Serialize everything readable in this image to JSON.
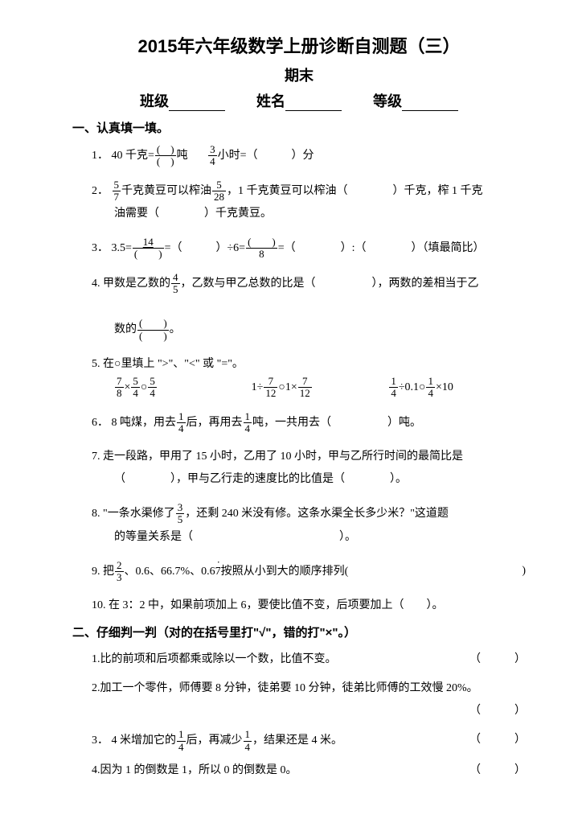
{
  "title": "2015年六年级数学上册诊断自测题（三）",
  "subtitle": "期末",
  "info": {
    "class_label": "班级",
    "name_label": "姓名",
    "grade_label": "等级"
  },
  "section1": {
    "head": "一、认真填一填。",
    "q1": {
      "n": "1．",
      "a": "40 千克=",
      "b": "吨",
      "c": "小时=（　　　）分"
    },
    "q2": {
      "n": "2．",
      "a": "千克黄豆可以榨油",
      "b": "，1 千克黄豆可以榨油（　　　　）千克，榨 1 千克",
      "c": "油需要（　　　　）千克黄豆。"
    },
    "q3": {
      "n": "3．",
      "a": "3.5=",
      "b": "=（　　　）÷6=",
      "c": "=（　　　　）:（　　　　）（填最简比）"
    },
    "q4": {
      "n": "4.",
      "a": "甲数是乙数的",
      "b": "，乙数与甲乙总数的比是（　　　　　），两数的差相当于乙",
      "c": "数的",
      "d": "。"
    },
    "q5": {
      "n": "5.",
      "a": "在○里填上 \">\"、\"<\" 或 \"=\"。",
      "c1a": "×",
      "c1b": "○",
      "c2a": "1÷",
      "c2b": "○1×",
      "c3a": "÷0.1○",
      "c3b": "×10"
    },
    "q6": {
      "n": "6．",
      "a": "8 吨煤，用去",
      "b": "后，再用去",
      "c": "吨，一共用去（　　　　　）吨。"
    },
    "q7": {
      "n": "7.",
      "a": "走一段路，甲用了 15 小时，乙用了 10 小时，甲与乙所行时间的最简比是",
      "b": "（　　　　），甲与乙行走的速度比的比值是（　　　　）。"
    },
    "q8": {
      "n": "8.",
      "a": "\"一条水渠修了",
      "b": "，还剩 240 米没有修。这条水渠全长多少米？\"这道题",
      "c": "的等量关系是（　　　　　　　　　　　　　）。"
    },
    "q9": {
      "n": "9.",
      "a": "把",
      "b": "、0.6、66.7%、0.6",
      "b2": "7",
      "b3": "按照从小到大的顺序排列(",
      "c": ")"
    },
    "q10": {
      "n": "10.",
      "a": "在 3：2 中，如果前项加上 6，要使比值不变，后项要加上（　　）。"
    }
  },
  "section2": {
    "head": "二、仔细判一判（对的在括号里打\"√\"，错的打\"×\"。）",
    "q1": {
      "n": "1.",
      "a": "比的前项和后项都乘或除以一个数，比值不变。",
      "brk": "（　　　）"
    },
    "q2": {
      "n": "2.",
      "a": "加工一个零件，师傅要 8 分钟，徒弟要 10 分钟，徒弟比师傅的工效慢 20%。",
      "brk": "（　　　）"
    },
    "q3": {
      "n": "3．",
      "a": "4 米增加它的",
      "b": "后，再减少",
      "c": "，结果还是 4 米。",
      "brk": "（　　　）"
    },
    "q4": {
      "n": "4.",
      "a": "因为 1 的倒数是 1，所以 0 的倒数是 0。",
      "brk": "（　　　）"
    }
  },
  "fracs": {
    "blank_over_blank": {
      "num": "(　)",
      "den": "(　)"
    },
    "three_four": {
      "num": "3",
      "den": "4"
    },
    "five_seven": {
      "num": "5",
      "den": "7"
    },
    "five_28": {
      "num": "5",
      "den": "28"
    },
    "f14_blank": {
      "num": "14",
      "den": "(　　)"
    },
    "blank_8": {
      "num": "(　　)",
      "den": "8"
    },
    "four_five": {
      "num": "4",
      "den": "5"
    },
    "blank_blank2": {
      "num": "(　　)",
      "den": "(　　)"
    },
    "seven_eight": {
      "num": "7",
      "den": "8"
    },
    "five_four": {
      "num": "5",
      "den": "4"
    },
    "seven_12": {
      "num": "7",
      "den": "12"
    },
    "one_four": {
      "num": "1",
      "den": "4"
    },
    "three_five": {
      "num": "3",
      "den": "5"
    },
    "two_three": {
      "num": "2",
      "den": "3"
    }
  }
}
